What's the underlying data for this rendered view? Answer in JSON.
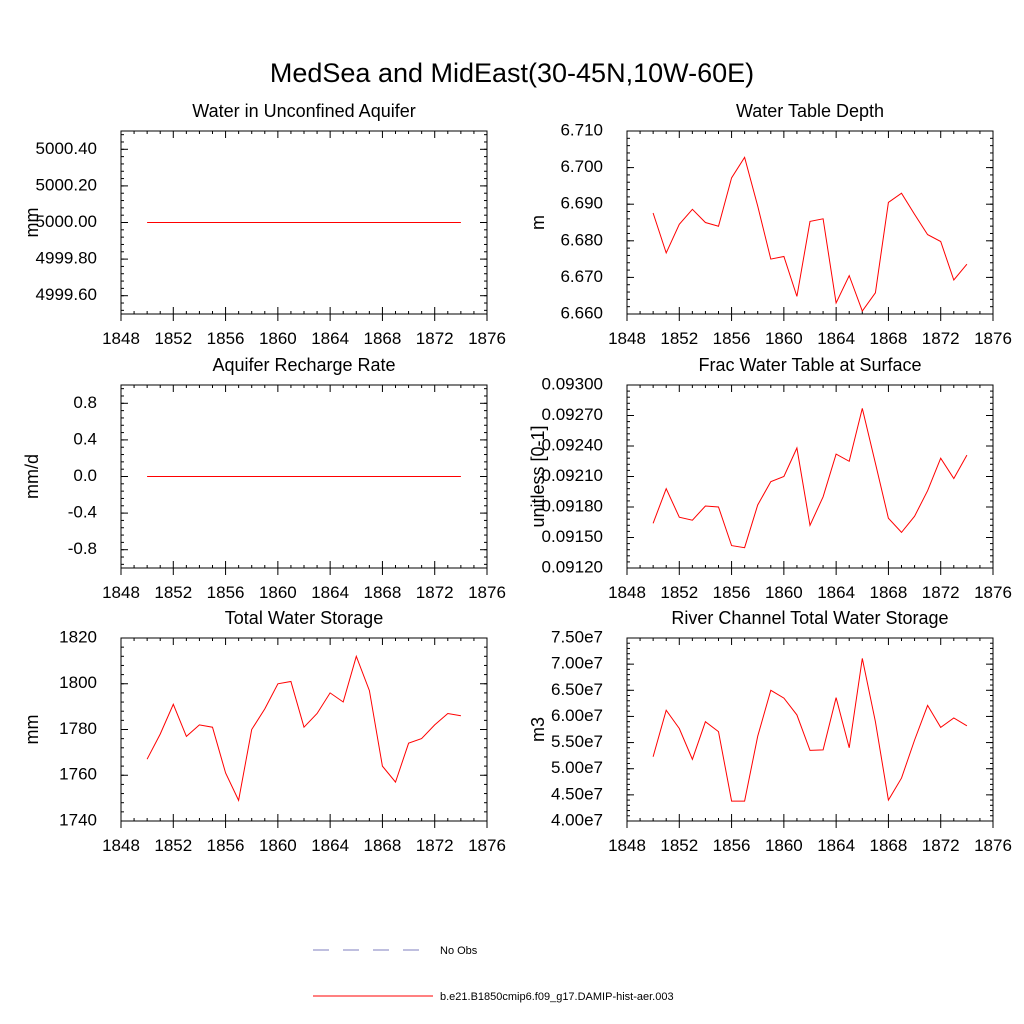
{
  "title": "MedSea and MidEast(30-45N,10W-60E)",
  "chart_data": [
    {
      "type": "line",
      "title": "Water in Unconfined Aquifer",
      "ylabel": "mm",
      "xlim": [
        1848,
        1876
      ],
      "ylim": [
        4999.5,
        5000.5
      ],
      "xticks": [
        1848,
        1852,
        1856,
        1860,
        1864,
        1868,
        1872,
        1876
      ],
      "xtick_labels": [
        "1848",
        "1852",
        "1856",
        "1860",
        "1864",
        "1868",
        "1872",
        "1876"
      ],
      "yticks": [
        4999.6,
        4999.8,
        5000.0,
        5000.2,
        5000.4
      ],
      "ytick_labels": [
        "4999.60",
        "4999.80",
        "5000.00",
        "5000.20",
        "5000.40"
      ],
      "x": [
        1850,
        1874
      ],
      "series": [
        {
          "values": [
            5000.0,
            5000.0
          ]
        }
      ]
    },
    {
      "type": "line",
      "title": "Water Table Depth",
      "ylabel": "m",
      "xlim": [
        1848,
        1876
      ],
      "ylim": [
        6.66,
        6.71
      ],
      "xticks": [
        1848,
        1852,
        1856,
        1860,
        1864,
        1868,
        1872,
        1876
      ],
      "xtick_labels": [
        "1848",
        "1852",
        "1856",
        "1860",
        "1864",
        "1868",
        "1872",
        "1876"
      ],
      "yticks": [
        6.66,
        6.67,
        6.68,
        6.69,
        6.7,
        6.71
      ],
      "ytick_labels": [
        "6.660",
        "6.670",
        "6.680",
        "6.690",
        "6.700",
        "6.710"
      ],
      "x": [
        1850,
        1851,
        1852,
        1853,
        1854,
        1855,
        1856,
        1857,
        1858,
        1859,
        1860,
        1861,
        1862,
        1863,
        1864,
        1865,
        1866,
        1867,
        1868,
        1869,
        1870,
        1871,
        1872,
        1873,
        1874
      ],
      "series": [
        {
          "values": [
            6.6876,
            6.6767,
            6.6845,
            6.6886,
            6.685,
            6.684,
            6.6972,
            6.7028,
            6.6895,
            6.675,
            6.6757,
            6.6648,
            6.6853,
            6.686,
            6.663,
            6.6705,
            6.6608,
            6.6658,
            6.6905,
            6.693,
            6.6872,
            6.6817,
            6.6798,
            6.6693,
            6.6736
          ]
        }
      ]
    },
    {
      "type": "line",
      "title": "Aquifer Recharge Rate",
      "ylabel": "mm/d",
      "xlim": [
        1848,
        1876
      ],
      "ylim": [
        -1.0,
        1.0
      ],
      "xticks": [
        1848,
        1852,
        1856,
        1860,
        1864,
        1868,
        1872,
        1876
      ],
      "xtick_labels": [
        "1848",
        "1852",
        "1856",
        "1860",
        "1864",
        "1868",
        "1872",
        "1876"
      ],
      "yticks": [
        -0.8,
        -0.4,
        0.0,
        0.4,
        0.8
      ],
      "ytick_labels": [
        "-0.8",
        "-0.4",
        "0.0",
        "0.4",
        "0.8"
      ],
      "x": [
        1850,
        1874
      ],
      "series": [
        {
          "values": [
            0.0,
            0.0
          ]
        }
      ]
    },
    {
      "type": "line",
      "title": "Frac Water Table at Surface",
      "ylabel": "unitless [0-1]",
      "xlim": [
        1848,
        1876
      ],
      "ylim": [
        0.0912,
        0.093
      ],
      "xticks": [
        1848,
        1852,
        1856,
        1860,
        1864,
        1868,
        1872,
        1876
      ],
      "xtick_labels": [
        "1848",
        "1852",
        "1856",
        "1860",
        "1864",
        "1868",
        "1872",
        "1876"
      ],
      "yticks": [
        0.0912,
        0.0915,
        0.0918,
        0.0921,
        0.0924,
        0.0927,
        0.093
      ],
      "ytick_labels": [
        "0.09120",
        "0.09150",
        "0.09180",
        "0.09210",
        "0.09240",
        "0.09270",
        "0.09300"
      ],
      "x": [
        1850,
        1851,
        1852,
        1853,
        1854,
        1855,
        1856,
        1857,
        1858,
        1859,
        1860,
        1861,
        1862,
        1863,
        1864,
        1865,
        1866,
        1867,
        1868,
        1869,
        1870,
        1871,
        1872,
        1873,
        1874
      ],
      "series": [
        {
          "values": [
            0.09164,
            0.09198,
            0.0917,
            0.09167,
            0.09181,
            0.0918,
            0.09142,
            0.0914,
            0.09182,
            0.09205,
            0.0921,
            0.09238,
            0.09162,
            0.0919,
            0.09232,
            0.09225,
            0.09277,
            0.09223,
            0.09169,
            0.09155,
            0.09171,
            0.09196,
            0.09228,
            0.09208,
            0.09231
          ]
        }
      ]
    },
    {
      "type": "line",
      "title": "Total Water Storage",
      "ylabel": "mm",
      "xlim": [
        1848,
        1876
      ],
      "ylim": [
        1740,
        1820
      ],
      "xticks": [
        1848,
        1852,
        1856,
        1860,
        1864,
        1868,
        1872,
        1876
      ],
      "xtick_labels": [
        "1848",
        "1852",
        "1856",
        "1860",
        "1864",
        "1868",
        "1872",
        "1876"
      ],
      "yticks": [
        1740,
        1760,
        1780,
        1800,
        1820
      ],
      "ytick_labels": [
        "1740",
        "1760",
        "1780",
        "1800",
        "1820"
      ],
      "x": [
        1850,
        1851,
        1852,
        1853,
        1854,
        1855,
        1856,
        1857,
        1858,
        1859,
        1860,
        1861,
        1862,
        1863,
        1864,
        1865,
        1866,
        1867,
        1868,
        1869,
        1870,
        1871,
        1872,
        1873,
        1874
      ],
      "series": [
        {
          "values": [
            1767,
            1778,
            1791,
            1777,
            1782,
            1781,
            1761,
            1749,
            1780,
            1789,
            1800,
            1801,
            1781,
            1787,
            1796,
            1792,
            1812,
            1797,
            1764,
            1757,
            1774,
            1776,
            1782,
            1787,
            1786
          ]
        }
      ]
    },
    {
      "type": "line",
      "title": "River Channel Total Water Storage",
      "ylabel": "m3",
      "xlim": [
        1848,
        1876
      ],
      "ylim": [
        40000000,
        75000000
      ],
      "xticks": [
        1848,
        1852,
        1856,
        1860,
        1864,
        1868,
        1872,
        1876
      ],
      "xtick_labels": [
        "1848",
        "1852",
        "1856",
        "1860",
        "1864",
        "1868",
        "1872",
        "1876"
      ],
      "yticks": [
        40000000,
        45000000,
        50000000,
        55000000,
        60000000,
        65000000,
        70000000,
        75000000
      ],
      "ytick_labels": [
        "4.00e7",
        "4.50e7",
        "5.00e7",
        "5.50e7",
        "6.00e7",
        "6.50e7",
        "7.00e7",
        "7.50e7"
      ],
      "x": [
        1850,
        1851,
        1852,
        1853,
        1854,
        1855,
        1856,
        1857,
        1858,
        1859,
        1860,
        1861,
        1862,
        1863,
        1864,
        1865,
        1866,
        1867,
        1868,
        1869,
        1870,
        1871,
        1872,
        1873,
        1874
      ],
      "series": [
        {
          "values": [
            52300000,
            61200000,
            57700000,
            51800000,
            59000000,
            57100000,
            43800000,
            43800000,
            56200000,
            65000000,
            63500000,
            60300000,
            53500000,
            53600000,
            63600000,
            54000000,
            71100000,
            59000000,
            44000000,
            48200000,
            55500000,
            62100000,
            57900000,
            59700000,
            58200000
          ]
        }
      ]
    }
  ],
  "legend": {
    "entries": [
      {
        "label": "No Obs",
        "color": "#7f7fbf",
        "style": "dashed"
      },
      {
        "label": "b.e21.B1850cmip6.f09_g17.DAMIP-hist-aer.003",
        "color": "#ff0000",
        "style": "solid"
      }
    ]
  }
}
